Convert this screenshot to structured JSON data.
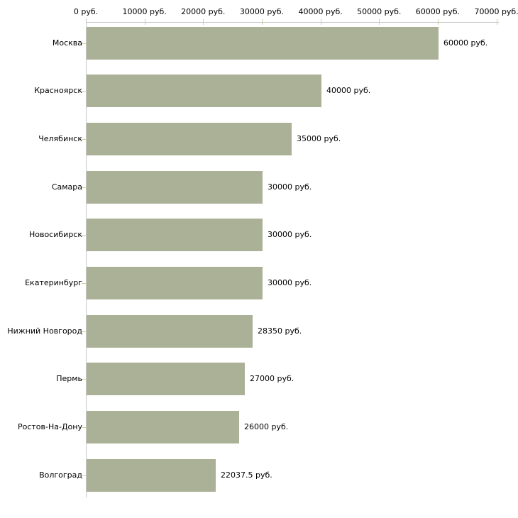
{
  "chart_data": {
    "type": "bar",
    "orientation": "horizontal",
    "title": "",
    "categories": [
      "Москва",
      "Красноярск",
      "Челябинск",
      "Самара",
      "Новосибирск",
      "Екатеринбург",
      "Нижний Новгород",
      "Пермь",
      "Ростов-На-Дону",
      "Волгоград"
    ],
    "values": [
      60000,
      40000,
      35000,
      30000,
      30000,
      30000,
      28350,
      27000,
      26000,
      22037.5
    ],
    "value_labels": [
      "60000 руб.",
      "40000 руб.",
      "35000 руб.",
      "30000 руб.",
      "30000 руб.",
      "30000 руб.",
      "28350 руб.",
      "27000 руб.",
      "26000 руб.",
      "22037.5 руб."
    ],
    "x_axis": {
      "position": "top",
      "min": 0,
      "max": 70000,
      "tick_interval": 10000,
      "tick_labels": [
        "0 руб.",
        "10000 руб.",
        "20000 руб.",
        "30000 руб.",
        "40000 руб.",
        "50000 руб.",
        "60000 руб.",
        "70000 руб."
      ]
    },
    "unit": "руб.",
    "grid": false,
    "legend": false,
    "colors": {
      "bar": "#abb197",
      "axis_line": "#c6c6c6",
      "tick": "#d2cfa4",
      "text": "#000000",
      "background": "#ffffff"
    }
  }
}
